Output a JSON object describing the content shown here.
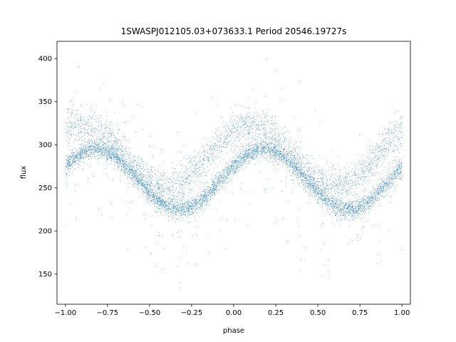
{
  "chart_data": {
    "type": "scatter",
    "title": "1SWASPJ012105.03+073633.1 Period 20546.19727s",
    "xlabel": "phase",
    "ylabel": "flux",
    "xlim": [
      -1.05,
      1.05
    ],
    "ylim": [
      115,
      420
    ],
    "xticks": [
      -1.0,
      -0.75,
      -0.5,
      -0.25,
      0.0,
      0.25,
      0.5,
      0.75,
      1.0
    ],
    "xtick_labels": [
      "−1.00",
      "−0.75",
      "−0.50",
      "−0.25",
      "0.00",
      "0.25",
      "0.50",
      "0.75",
      "1.00"
    ],
    "yticks": [
      150,
      200,
      250,
      300,
      350,
      400
    ],
    "ytick_labels": [
      "150",
      "200",
      "250",
      "300",
      "350",
      "400"
    ],
    "grid": false,
    "legend": "none",
    "point_color": "#1f77b4",
    "series": [
      {
        "model": "folded light curve, mirrored over two cycles",
        "phase_range": [
          -1.0,
          1.0
        ],
        "max_flux_near_phase": [
          -0.82,
          0.18
        ],
        "max_flux": 295,
        "min_flux_near_phase": [
          -0.32,
          0.68
        ],
        "min_flux": 224,
        "upper_envelope_max_flux": 328,
        "upper_envelope_min_flux": 258,
        "outlier_range": [
          128,
          405
        ]
      }
    ]
  }
}
